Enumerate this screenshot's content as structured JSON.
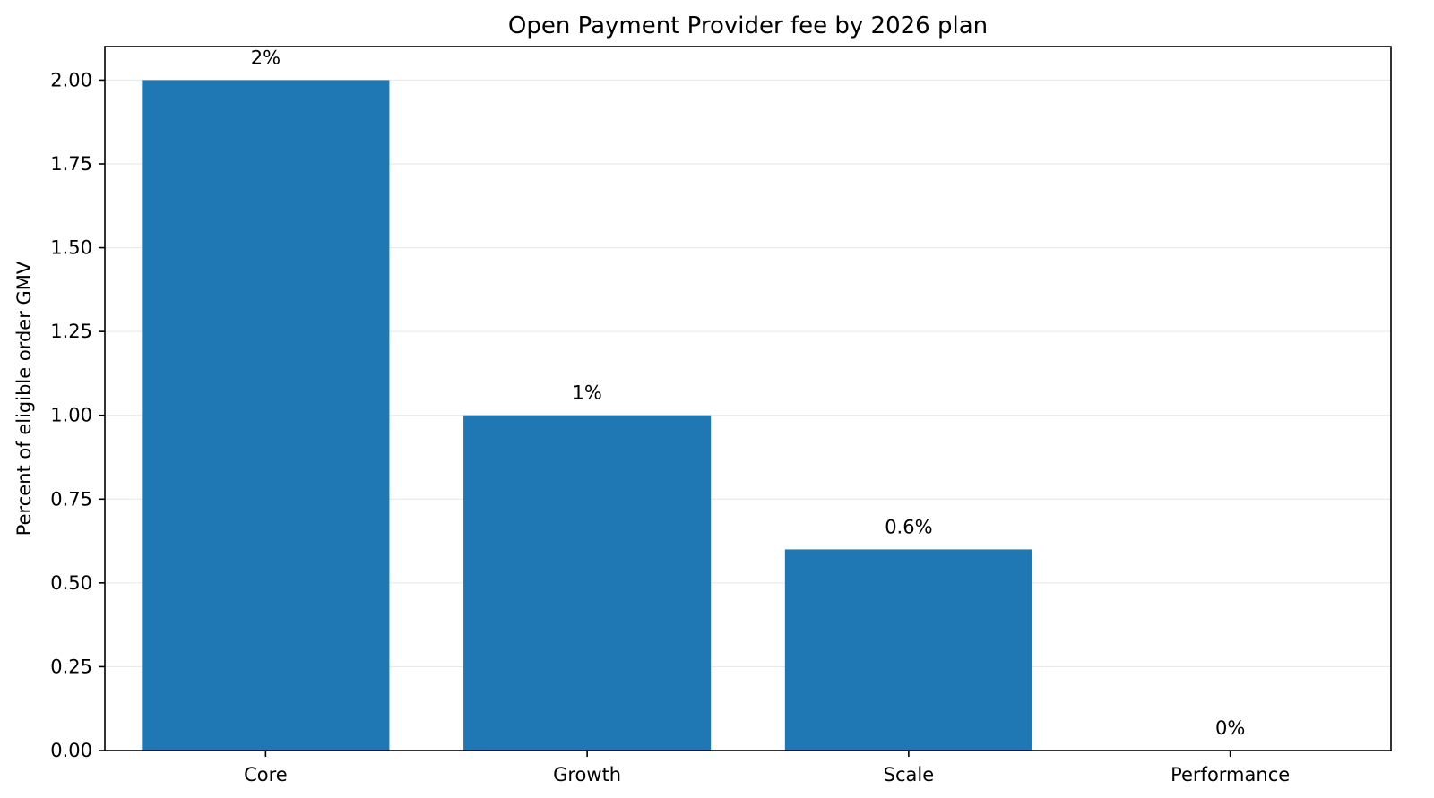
{
  "chart_data": {
    "type": "bar",
    "title": "Open Payment Provider fee by 2026 plan",
    "xlabel": "",
    "ylabel": "Percent of eligible order GMV",
    "categories": [
      "Core",
      "Growth",
      "Scale",
      "Performance"
    ],
    "values": [
      2,
      1,
      0.6,
      0
    ],
    "data_labels": [
      "2%",
      "1%",
      "0.6%",
      "0%"
    ],
    "ylim": [
      0,
      2.1
    ],
    "yticks": [
      0,
      0.25,
      0.5,
      0.75,
      1.0,
      1.25,
      1.5,
      1.75,
      2.0
    ],
    "ytick_labels": [
      "0.00",
      "0.25",
      "0.50",
      "0.75",
      "1.00",
      "1.25",
      "1.50",
      "1.75",
      "2.00"
    ],
    "grid": "y-axis, light",
    "legend": "none",
    "bar_color": "#1f77b4"
  }
}
